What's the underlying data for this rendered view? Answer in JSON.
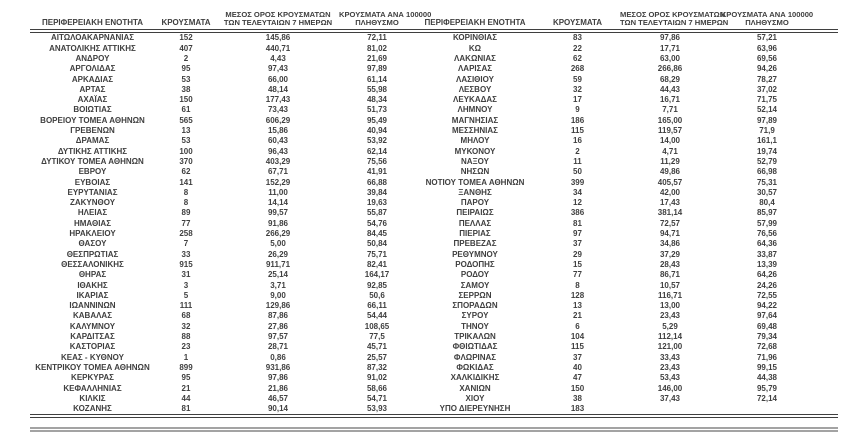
{
  "table": {
    "headers": {
      "region": "ΠΕΡΙΦΕΡΕΙΑΚΗ ΕΝΟΤΗΤΑ",
      "cases": "ΚΡΟΥΣΜΑΤΑ",
      "avg7_line1": "ΜΕΣΟΣ ΟΡΟΣ ΚΡΟΥΣΜΑΤΩΝ",
      "avg7_line2": "ΤΩΝ ΤΕΛΕΥΤΑΙΩΝ 7 ΗΜΕΡΩΝ",
      "per100k_line1": "ΚΡΟΥΣΜΑΤΑ ΑΝΑ 100000",
      "per100k_line2": "ΠΛΗΘΥΣΜΟ"
    },
    "left_rows": [
      [
        "ΑΙΤΩΛΟΑΚΑΡΝΑΝΙΑΣ",
        "152",
        "145,86",
        "72,11"
      ],
      [
        "ΑΝΑΤΟΛΙΚΗΣ ΑΤΤΙΚΗΣ",
        "407",
        "440,71",
        "81,02"
      ],
      [
        "ΑΝΔΡΟΥ",
        "2",
        "4,43",
        "21,69"
      ],
      [
        "ΑΡΓΟΛΙΔΑΣ",
        "95",
        "97,43",
        "97,89"
      ],
      [
        "ΑΡΚΑΔΙΑΣ",
        "53",
        "66,00",
        "61,14"
      ],
      [
        "ΑΡΤΑΣ",
        "38",
        "48,14",
        "55,98"
      ],
      [
        "ΑΧΑΪΑΣ",
        "150",
        "177,43",
        "48,34"
      ],
      [
        "ΒΟΙΩΤΙΑΣ",
        "61",
        "73,43",
        "51,73"
      ],
      [
        "ΒΟΡΕΙΟΥ ΤΟΜΕΑ ΑΘΗΝΩΝ",
        "565",
        "606,29",
        "95,49"
      ],
      [
        "ΓΡΕΒΕΝΩΝ",
        "13",
        "15,86",
        "40,94"
      ],
      [
        "ΔΡΑΜΑΣ",
        "53",
        "60,43",
        "53,92"
      ],
      [
        "ΔΥΤΙΚΗΣ ΑΤΤΙΚΗΣ",
        "100",
        "96,43",
        "62,14"
      ],
      [
        "ΔΥΤΙΚΟΥ ΤΟΜΕΑ ΑΘΗΝΩΝ",
        "370",
        "403,29",
        "75,56"
      ],
      [
        "ΕΒΡΟΥ",
        "62",
        "67,71",
        "41,91"
      ],
      [
        "ΕΥΒΟΙΑΣ",
        "141",
        "152,29",
        "66,88"
      ],
      [
        "ΕΥΡΥΤΑΝΙΑΣ",
        "8",
        "11,00",
        "39,84"
      ],
      [
        "ΖΑΚΥΝΘΟΥ",
        "8",
        "14,14",
        "19,63"
      ],
      [
        "ΗΛΕΙΑΣ",
        "89",
        "99,57",
        "55,87"
      ],
      [
        "ΗΜΑΘΙΑΣ",
        "77",
        "91,86",
        "54,76"
      ],
      [
        "ΗΡΑΚΛΕΙΟΥ",
        "258",
        "266,29",
        "84,45"
      ],
      [
        "ΘΑΣΟΥ",
        "7",
        "5,00",
        "50,84"
      ],
      [
        "ΘΕΣΠΡΩΤΙΑΣ",
        "33",
        "26,29",
        "75,71"
      ],
      [
        "ΘΕΣΣΑΛΟΝΙΚΗΣ",
        "915",
        "911,71",
        "82,41"
      ],
      [
        "ΘΗΡΑΣ",
        "31",
        "25,14",
        "164,17"
      ],
      [
        "ΙΘΑΚΗΣ",
        "3",
        "3,71",
        "92,85"
      ],
      [
        "ΙΚΑΡΙΑΣ",
        "5",
        "9,00",
        "50,6"
      ],
      [
        "ΙΩΑΝΝΙΝΩΝ",
        "111",
        "129,86",
        "66,11"
      ],
      [
        "ΚΑΒΑΛΑΣ",
        "68",
        "87,86",
        "54,44"
      ],
      [
        "ΚΑΛΥΜΝΟΥ",
        "32",
        "27,86",
        "108,65"
      ],
      [
        "ΚΑΡΔΙΤΣΑΣ",
        "88",
        "97,57",
        "77,5"
      ],
      [
        "ΚΑΣΤΟΡΙΑΣ",
        "23",
        "28,71",
        "45,71"
      ],
      [
        "ΚΕΑΣ - ΚΥΘΝΟΥ",
        "1",
        "0,86",
        "25,57"
      ],
      [
        "ΚΕΝΤΡΙΚΟΥ ΤΟΜΕΑ ΑΘΗΝΩΝ",
        "899",
        "931,86",
        "87,32"
      ],
      [
        "ΚΕΡΚΥΡΑΣ",
        "95",
        "97,86",
        "91,02"
      ],
      [
        "ΚΕΦΑΛΛΗΝΙΑΣ",
        "21",
        "21,86",
        "58,66"
      ],
      [
        "ΚΙΛΚΙΣ",
        "44",
        "46,57",
        "54,71"
      ],
      [
        "ΚΟΖΑΝΗΣ",
        "81",
        "90,14",
        "53,93"
      ]
    ],
    "right_rows": [
      [
        "ΚΟΡΙΝΘΙΑΣ",
        "83",
        "97,86",
        "57,21"
      ],
      [
        "ΚΩ",
        "22",
        "17,71",
        "63,96"
      ],
      [
        "ΛΑΚΩΝΙΑΣ",
        "62",
        "63,00",
        "69,56"
      ],
      [
        "ΛΑΡΙΣΑΣ",
        "268",
        "266,86",
        "94,26"
      ],
      [
        "ΛΑΣΙΘΙΟΥ",
        "59",
        "68,29",
        "78,27"
      ],
      [
        "ΛΕΣΒΟΥ",
        "32",
        "44,43",
        "37,02"
      ],
      [
        "ΛΕΥΚΑΔΑΣ",
        "17",
        "16,71",
        "71,75"
      ],
      [
        "ΛΗΜΝΟΥ",
        "9",
        "7,71",
        "52,14"
      ],
      [
        "ΜΑΓΝΗΣΙΑΣ",
        "186",
        "165,00",
        "97,89"
      ],
      [
        "ΜΕΣΣΗΝΙΑΣ",
        "115",
        "119,57",
        "71,9"
      ],
      [
        "ΜΗΛΟΥ",
        "16",
        "14,00",
        "161,1"
      ],
      [
        "ΜΥΚΟΝΟΥ",
        "2",
        "4,71",
        "19,74"
      ],
      [
        "ΝΑΞΟΥ",
        "11",
        "11,29",
        "52,79"
      ],
      [
        "ΝΗΣΩΝ",
        "50",
        "49,86",
        "66,98"
      ],
      [
        "ΝΟΤΙΟΥ ΤΟΜΕΑ ΑΘΗΝΩΝ",
        "399",
        "405,57",
        "75,31"
      ],
      [
        "ΞΑΝΘΗΣ",
        "34",
        "42,00",
        "30,57"
      ],
      [
        "ΠΑΡΟΥ",
        "12",
        "17,43",
        "80,4"
      ],
      [
        "ΠΕΙΡΑΙΩΣ",
        "386",
        "381,14",
        "85,97"
      ],
      [
        "ΠΕΛΛΑΣ",
        "81",
        "72,57",
        "57,99"
      ],
      [
        "ΠΙΕΡΙΑΣ",
        "97",
        "94,71",
        "76,56"
      ],
      [
        "ΠΡΕΒΕΖΑΣ",
        "37",
        "34,86",
        "64,36"
      ],
      [
        "ΡΕΘΥΜΝΟΥ",
        "29",
        "37,29",
        "33,87"
      ],
      [
        "ΡΟΔΟΠΗΣ",
        "15",
        "28,43",
        "13,39"
      ],
      [
        "ΡΟΔΟΥ",
        "77",
        "86,71",
        "64,26"
      ],
      [
        "ΣΑΜΟΥ",
        "8",
        "10,57",
        "24,26"
      ],
      [
        "ΣΕΡΡΩΝ",
        "128",
        "116,71",
        "72,55"
      ],
      [
        "ΣΠΟΡΑΔΩΝ",
        "13",
        "13,00",
        "94,22"
      ],
      [
        "ΣΥΡΟΥ",
        "21",
        "23,43",
        "97,64"
      ],
      [
        "ΤΗΝΟΥ",
        "6",
        "5,29",
        "69,48"
      ],
      [
        "ΤΡΙΚΑΛΩΝ",
        "104",
        "112,14",
        "79,34"
      ],
      [
        "ΦΘΙΩΤΙΔΑΣ",
        "115",
        "121,00",
        "72,68"
      ],
      [
        "ΦΛΩΡΙΝΑΣ",
        "37",
        "33,43",
        "71,96"
      ],
      [
        "ΦΩΚΙΔΑΣ",
        "40",
        "23,43",
        "99,15"
      ],
      [
        "ΧΑΛΚΙΔΙΚΗΣ",
        "47",
        "53,43",
        "44,38"
      ],
      [
        "ΧΑΝΙΩΝ",
        "150",
        "146,00",
        "95,79"
      ],
      [
        "ΧΙΟΥ",
        "38",
        "37,43",
        "72,14"
      ],
      [
        "ΥΠΟ ΔΙΕΡΕΥΝΗΣΗ",
        "183",
        "",
        ""
      ]
    ]
  },
  "colors": {
    "text": "#3f3f3f",
    "table_border": "#3f3f3f",
    "footer_rule": "#a3a3a3"
  }
}
